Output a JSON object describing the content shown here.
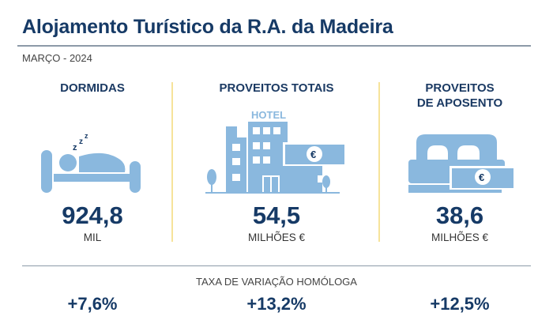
{
  "header": {
    "title": "Alojamento Turístico da R.A. da Madeira",
    "period": "MARÇO - 2024"
  },
  "columns": [
    {
      "label": "DORMIDAS",
      "value": "924,8",
      "unit": "MIL",
      "icon": "sleeping-person-bed-icon",
      "variation": "+7,6%"
    },
    {
      "label": "PROVEITOS TOTAIS",
      "value": "54,5",
      "unit": "MILHÕES €",
      "icon": "hotel-euro-icon",
      "icon_text": "HOTEL",
      "variation": "+13,2%"
    },
    {
      "label_line1": "PROVEITOS",
      "label_line2": "DE APOSENTO",
      "value": "38,6",
      "unit": "MILHÕES €",
      "icon": "bed-euro-icon",
      "variation": "+12,5%"
    }
  ],
  "footer": {
    "label": "TAXA DE VARIAÇÃO HOMÓLOGA"
  },
  "colors": {
    "title": "#163a66",
    "icon": "#8ab8de",
    "divider": "#f6e39a"
  }
}
